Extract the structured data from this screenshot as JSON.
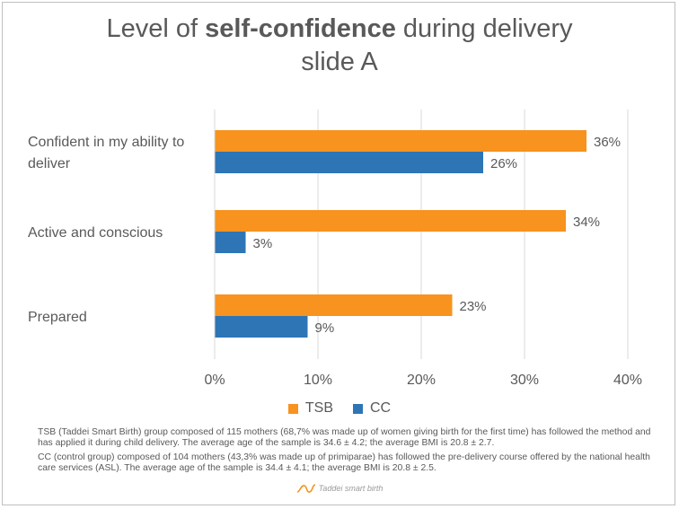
{
  "title": {
    "pre": "Level of ",
    "bold": "self-confidence",
    "post": " during delivery",
    "line2": "slide A"
  },
  "colors": {
    "tsb": "#F7931E",
    "cc": "#2E75B6",
    "grid": "#d9d9d9",
    "axis_text": "#595959"
  },
  "chart_data": {
    "type": "bar",
    "orientation": "horizontal",
    "title": "Level of self-confidence during delivery slide A",
    "categories": [
      [
        "Confident in my ability to",
        "deliver"
      ],
      [
        "Active and conscious"
      ],
      [
        "Prepared"
      ]
    ],
    "series": [
      {
        "name": "TSB",
        "values": [
          36,
          34,
          23
        ],
        "labels": [
          "36%",
          "34%",
          "23%"
        ]
      },
      {
        "name": "CC",
        "values": [
          26,
          3,
          9
        ],
        "labels": [
          "26%",
          "3%",
          "9%"
        ]
      }
    ],
    "xlim": [
      0,
      40
    ],
    "x_ticks": [
      "0%",
      "10%",
      "20%",
      "30%",
      "40%"
    ],
    "grid": true,
    "legend_position": "bottom"
  },
  "legend": [
    {
      "name": "TSB",
      "color": "#F7931E"
    },
    {
      "name": "CC",
      "color": "#2E75B6"
    }
  ],
  "footnote": {
    "line1": "TSB (Taddei Smart Birth) group composed of 115 mothers (68,7% was made up of women giving birth for the first time) has followed the method and has applied it during child delivery. The average age of the sample is 34.6 ± 4.2; the average BMI is 20.8 ± 2.7.",
    "line2": "CC (control group) composed of 104 mothers (43,3% was made up of primiparae) has followed the pre-delivery course offered by the national health care services (ASL). The average age of the sample is 34.4 ± 4.1; the average BMI is 20.8 ± 2.5."
  },
  "logo": {
    "text": "Taddei smart birth",
    "icon": "wave-logo-icon"
  }
}
